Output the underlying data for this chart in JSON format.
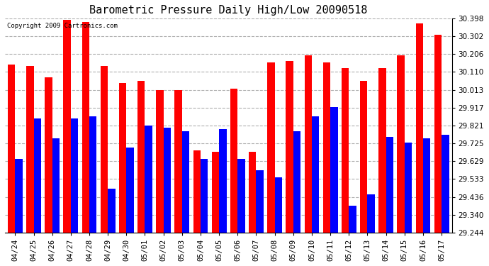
{
  "title": "Barometric Pressure Daily High/Low 20090518",
  "copyright": "Copyright 2009 Cartronics.com",
  "categories": [
    "04/24",
    "04/25",
    "04/26",
    "04/27",
    "04/28",
    "04/29",
    "04/30",
    "05/01",
    "05/02",
    "05/03",
    "05/04",
    "05/05",
    "05/06",
    "05/07",
    "05/08",
    "05/09",
    "05/10",
    "05/11",
    "05/12",
    "05/13",
    "05/14",
    "05/15",
    "05/16",
    "05/17"
  ],
  "highs": [
    30.15,
    30.14,
    30.08,
    30.39,
    30.38,
    30.14,
    30.05,
    30.06,
    30.01,
    30.01,
    29.685,
    29.68,
    30.02,
    29.68,
    30.16,
    30.17,
    30.2,
    30.16,
    30.13,
    30.06,
    30.13,
    30.2,
    30.37,
    30.31
  ],
  "lows": [
    29.64,
    29.86,
    29.75,
    29.86,
    29.87,
    29.48,
    29.7,
    29.82,
    29.81,
    29.79,
    29.64,
    29.8,
    29.64,
    29.58,
    29.54,
    29.79,
    29.87,
    29.92,
    29.39,
    29.45,
    29.76,
    29.73,
    29.75,
    29.77
  ],
  "ymin": 29.244,
  "ymax": 30.398,
  "yticks": [
    29.244,
    29.34,
    29.436,
    29.533,
    29.629,
    29.725,
    29.821,
    29.917,
    30.013,
    30.11,
    30.206,
    30.302,
    30.398
  ],
  "bar_width": 0.4,
  "high_color": "#ff0000",
  "low_color": "#0000ff",
  "bg_color": "#ffffff",
  "grid_color": "#b0b0b0",
  "title_fontsize": 11,
  "tick_fontsize": 7.5,
  "copyright_fontsize": 6.5
}
